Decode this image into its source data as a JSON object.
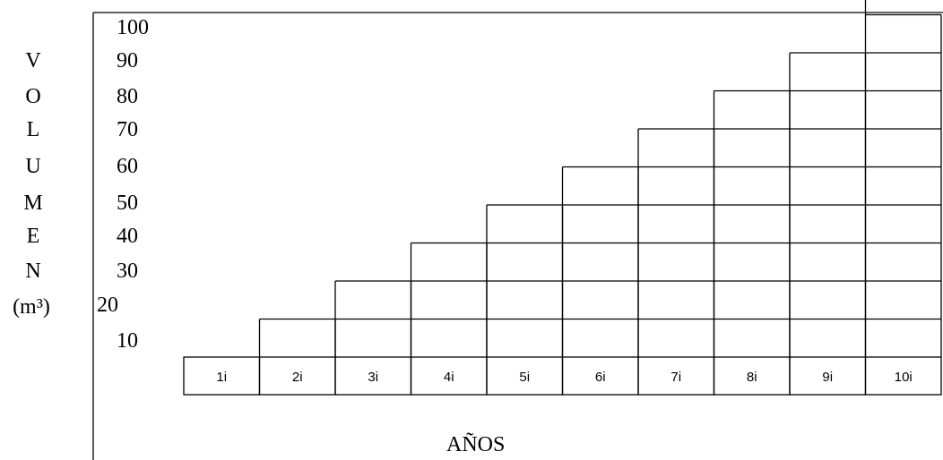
{
  "chart_data": {
    "type": "bar",
    "categories": [
      "1i",
      "2i",
      "3i",
      "4i",
      "5i",
      "6i",
      "7i",
      "8i",
      "9i",
      "10i"
    ],
    "values": [
      0,
      10,
      20,
      30,
      40,
      50,
      60,
      70,
      80,
      90
    ],
    "ylabel": "VOLUMEN",
    "ylabel_unit": "(m³)",
    "xlabel": "AÑOS",
    "y_ticks": [
      "100",
      "90",
      "80",
      "70",
      "60",
      "50",
      "40",
      "30",
      "20",
      "10"
    ],
    "ylim": [
      0,
      100
    ],
    "grid": true
  },
  "colors": {
    "stroke": "#000000",
    "background": "#ffffff"
  }
}
